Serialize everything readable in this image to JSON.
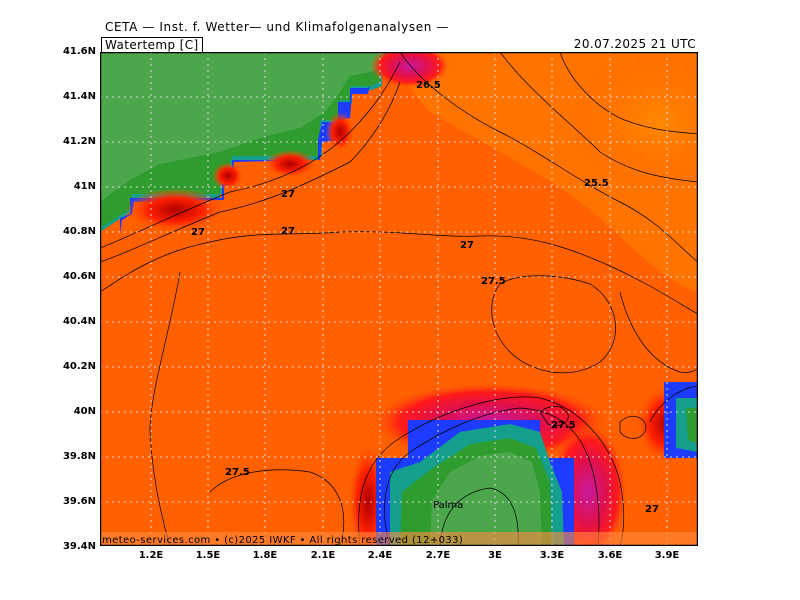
{
  "header": {
    "title": "CETA — Inst. f. Wetter— und Klimafolgenanalysen —",
    "parameter": "Watertemp [C]",
    "valid_time": "20.07.2025  21 UTC"
  },
  "axes": {
    "latitude_labels": [
      "41.6N",
      "41.4N",
      "41.2N",
      "41N",
      "40.8N",
      "40.6N",
      "40.4N",
      "40.2N",
      "40N",
      "39.8N",
      "39.6N",
      "39.4N"
    ],
    "longitude_labels": [
      "1.2E",
      "1.5E",
      "1.8E",
      "2.1E",
      "2.4E",
      "2.7E",
      "3E",
      "3.3E",
      "3.6E",
      "3.9E"
    ]
  },
  "contour_labels": [
    "26.5",
    "25.5",
    "27",
    "27",
    "27",
    "27",
    "27.5",
    "27.5",
    "27.5",
    "27"
  ],
  "places": {
    "palma": "Palma"
  },
  "footer": {
    "credit": "meteo-services.com • (c)2025 IWKF • All rights reserved (12+033)"
  },
  "colors": {
    "sea_warm": "#ff6000",
    "sea_cool": "#ff8200",
    "land_green": "#4ca64c",
    "dark_green": "#2e9c2e",
    "teal": "#14a08c",
    "blue": "#1e3cff",
    "red": "#e60000",
    "magenta": "#c0158c"
  }
}
